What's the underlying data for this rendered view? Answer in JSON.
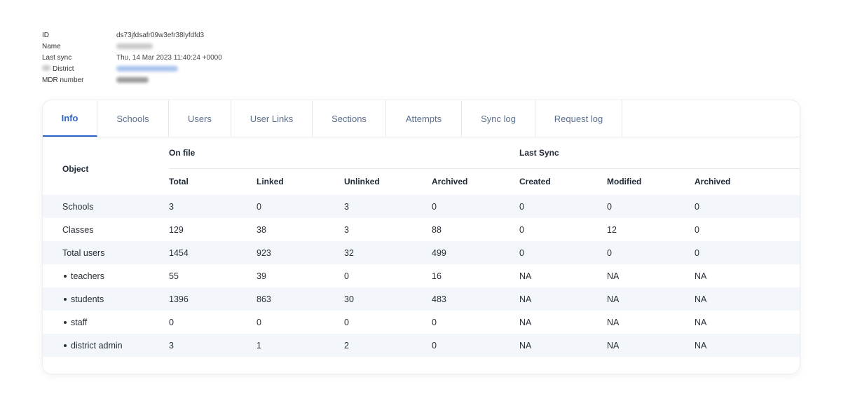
{
  "meta": {
    "rows": [
      {
        "key": "ID",
        "value": "ds73jfdsafr09w3efr38lyfdfd3",
        "redacted": false
      },
      {
        "key": "Name",
        "value": "",
        "redacted": true,
        "redact_color": "grey"
      },
      {
        "key": "Last sync",
        "value": "Thu, 14 Mar 2023 11:40:24 +0000",
        "redacted": false
      },
      {
        "key": "District",
        "value": "",
        "redacted": true,
        "redact_color": "blue",
        "key_prefix_redacted": true
      },
      {
        "key": "MDR number",
        "value": "",
        "redacted": true,
        "redact_color": "dark"
      }
    ]
  },
  "tabs": [
    {
      "label": "Info",
      "active": true
    },
    {
      "label": "Schools",
      "active": false
    },
    {
      "label": "Users",
      "active": false
    },
    {
      "label": "User Links",
      "active": false
    },
    {
      "label": "Sections",
      "active": false
    },
    {
      "label": "Attempts",
      "active": false
    },
    {
      "label": "Sync log",
      "active": false
    },
    {
      "label": "Request log",
      "active": false
    }
  ],
  "table": {
    "object_header": "Object",
    "group_on_file": "On file",
    "group_last_sync": "Last Sync",
    "columns": [
      "Total",
      "Linked",
      "Unlinked",
      "Archived",
      "Created",
      "Modified",
      "Archived"
    ],
    "rows": [
      {
        "label": "Schools",
        "bullet": false,
        "values": [
          "3",
          "0",
          "3",
          "0",
          "0",
          "0",
          "0"
        ]
      },
      {
        "label": "Classes",
        "bullet": false,
        "values": [
          "129",
          "38",
          "3",
          "88",
          "0",
          "12",
          "0"
        ]
      },
      {
        "label": "Total users",
        "bullet": false,
        "values": [
          "1454",
          "923",
          "32",
          "499",
          "0",
          "0",
          "0"
        ]
      },
      {
        "label": "teachers",
        "bullet": true,
        "values": [
          "55",
          "39",
          "0",
          "16",
          "NA",
          "NA",
          "NA"
        ]
      },
      {
        "label": "students",
        "bullet": true,
        "values": [
          "1396",
          "863",
          "30",
          "483",
          "NA",
          "NA",
          "NA"
        ]
      },
      {
        "label": "staff",
        "bullet": true,
        "values": [
          "0",
          "0",
          "0",
          "0",
          "NA",
          "NA",
          "NA"
        ]
      },
      {
        "label": "district admin",
        "bullet": true,
        "values": [
          "3",
          "1",
          "2",
          "0",
          "NA",
          "NA",
          "NA"
        ]
      }
    ]
  },
  "colors": {
    "accent": "#2d64c8",
    "tab_text": "#5a6e8c",
    "alt_row": "#f3f6fa",
    "border": "#e6e8ec"
  }
}
